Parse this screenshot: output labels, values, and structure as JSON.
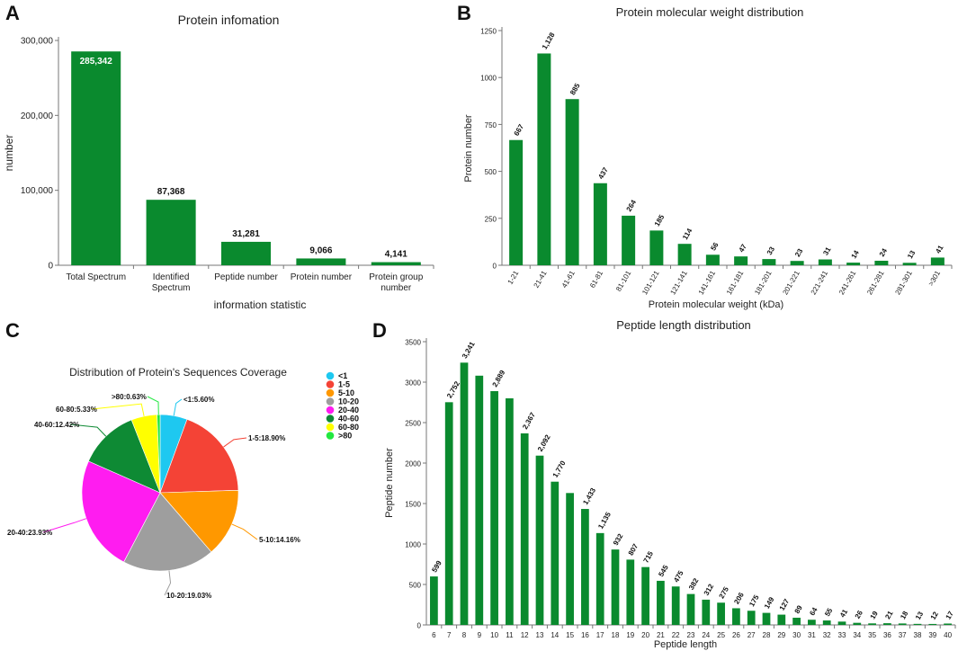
{
  "panels": {
    "a": "A",
    "b": "B",
    "c": "C",
    "d": "D"
  },
  "chart_data": [
    {
      "id": "A",
      "type": "bar",
      "title": "Protein infomation",
      "xlabel": "information statistic",
      "ylabel": "number",
      "ylim": [
        0,
        300000
      ],
      "yticks": [
        0,
        100000,
        200000,
        300000
      ],
      "ytick_labels": [
        "0",
        "100,000",
        "200,000",
        "300,000"
      ],
      "categories": [
        [
          "Total Spectrum"
        ],
        [
          "Identified",
          "Spectrum"
        ],
        [
          "Peptide number"
        ],
        [
          "Protein number"
        ],
        [
          "Protein group",
          "number"
        ]
      ],
      "values": [
        285342,
        87368,
        31281,
        9066,
        4141
      ],
      "value_labels": [
        "285,342",
        "87,368",
        "31,281",
        "9,066",
        "4,141"
      ],
      "color": "#0a8a2e"
    },
    {
      "id": "B",
      "type": "bar",
      "title": "Protein molecular weight distribution",
      "xlabel": "Protein molecular weight (kDa)",
      "ylabel": "Protein number",
      "ylim": [
        0,
        1250
      ],
      "yticks": [
        0,
        250,
        500,
        750,
        1000,
        1250
      ],
      "ytick_labels": [
        "0",
        "250",
        "500",
        "750",
        "1000",
        "1250"
      ],
      "categories": [
        "1-21",
        "21-41",
        "41-61",
        "61-81",
        "81-101",
        "101-121",
        "121-141",
        "141-161",
        "161-181",
        "181-201",
        "201-221",
        "221-241",
        "241-261",
        "261-281",
        "281-301",
        ">301"
      ],
      "values": [
        667,
        1128,
        885,
        437,
        264,
        185,
        114,
        56,
        47,
        33,
        23,
        31,
        14,
        24,
        13,
        41
      ],
      "value_labels": [
        "667",
        "1,128",
        "885",
        "437",
        "264",
        "185",
        "114",
        "56",
        "47",
        "33",
        "23",
        "31",
        "14",
        "24",
        "13",
        "41"
      ],
      "color": "#0a8a2e"
    },
    {
      "id": "C",
      "type": "pie",
      "title": "Distribution of Protein's Sequences Coverage",
      "slices": [
        {
          "name": "<1",
          "value": 5.6,
          "label": "<1:5.60%",
          "color": "#1ec8f0"
        },
        {
          "name": "1-5",
          "value": 18.9,
          "label": "1-5:18.90%",
          "color": "#f44336"
        },
        {
          "name": "5-10",
          "value": 14.16,
          "label": "5-10:14.16%",
          "color": "#ff9800"
        },
        {
          "name": "10-20",
          "value": 19.03,
          "label": "10-20:19.03%",
          "color": "#9e9e9e"
        },
        {
          "name": "20-40",
          "value": 23.93,
          "label": "20-40:23.93%",
          "color": "#ff1cf0"
        },
        {
          "name": "40-60",
          "value": 12.42,
          "label": "40-60:12.42%",
          "color": "#0e8a34"
        },
        {
          "name": "60-80",
          "value": 5.33,
          "label": "60-80:5.33%",
          "color": "#ffff00"
        },
        {
          "name": ">80",
          "value": 0.63,
          "label": ">80:0.63%",
          "color": "#22e840"
        }
      ],
      "legend": [
        "<1",
        "1-5",
        "5-10",
        "10-20",
        "20-40",
        "40-60",
        "60-80",
        ">80"
      ]
    },
    {
      "id": "D",
      "type": "bar",
      "title": "Peptide length distribution",
      "xlabel": "Peptide length",
      "ylabel": "Peptide number",
      "ylim": [
        0,
        3500
      ],
      "yticks": [
        0,
        500,
        1000,
        1500,
        2000,
        2500,
        3000,
        3500
      ],
      "ytick_labels": [
        "0",
        "500",
        "1000",
        "1500",
        "2000",
        "2500",
        "3000",
        "3500"
      ],
      "categories": [
        "6",
        "7",
        "8",
        "9",
        "10",
        "11",
        "12",
        "13",
        "14",
        "15",
        "16",
        "17",
        "18",
        "19",
        "20",
        "21",
        "22",
        "23",
        "24",
        "25",
        "26",
        "27",
        "28",
        "29",
        "30",
        "31",
        "32",
        "33",
        "34",
        "35",
        "36",
        "37",
        "38",
        "39",
        "40"
      ],
      "values": [
        599,
        2752,
        3241,
        3080,
        2889,
        2800,
        2367,
        2092,
        1770,
        1630,
        1433,
        1135,
        932,
        807,
        715,
        545,
        475,
        382,
        312,
        275,
        206,
        175,
        149,
        127,
        89,
        64,
        55,
        41,
        26,
        19,
        21,
        18,
        13,
        12,
        17
      ],
      "value_labels": [
        "599",
        "2,752",
        "3,241",
        "",
        "2,889",
        "",
        "2,367",
        "2,092",
        "1,770",
        "",
        "1,433",
        "1,135",
        "932",
        "807",
        "715",
        "545",
        "475",
        "382",
        "312",
        "275",
        "206",
        "175",
        "149",
        "127",
        "89",
        "64",
        "55",
        "41",
        "26",
        "19",
        "21",
        "18",
        "13",
        "12",
        "17"
      ],
      "color": "#0a8a2e"
    }
  ]
}
